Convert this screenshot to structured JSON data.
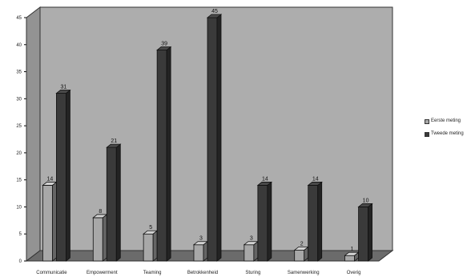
{
  "chart_data": {
    "type": "bar",
    "title": "",
    "xlabel": "",
    "ylabel": "",
    "ylim": [
      0,
      45
    ],
    "yticks": [
      0,
      5,
      10,
      15,
      20,
      25,
      30,
      35,
      40,
      45
    ],
    "categories": [
      "Communicatie",
      "Empowerment",
      "Teaming",
      "Betrokkenheid",
      "Sturing",
      "Samenwerking",
      "Overig"
    ],
    "series": [
      {
        "name": "Eerste meting",
        "color": "#a8a8a8",
        "values": [
          14,
          8,
          5,
          3,
          3,
          2,
          1
        ]
      },
      {
        "name": "Tweede meting",
        "color": "#3a3a3a",
        "values": [
          31,
          21,
          39,
          45,
          14,
          14,
          10
        ]
      }
    ],
    "data_labels": [
      [
        "14",
        "8",
        "5",
        "3",
        "3",
        "2",
        "1"
      ],
      [
        "31",
        "21",
        "39",
        "45",
        "14",
        "14",
        "10"
      ]
    ],
    "grid": false,
    "style": "3d",
    "wall_color": "#adadad",
    "floor_color": "#6b6b6b",
    "legend_position": "right"
  }
}
